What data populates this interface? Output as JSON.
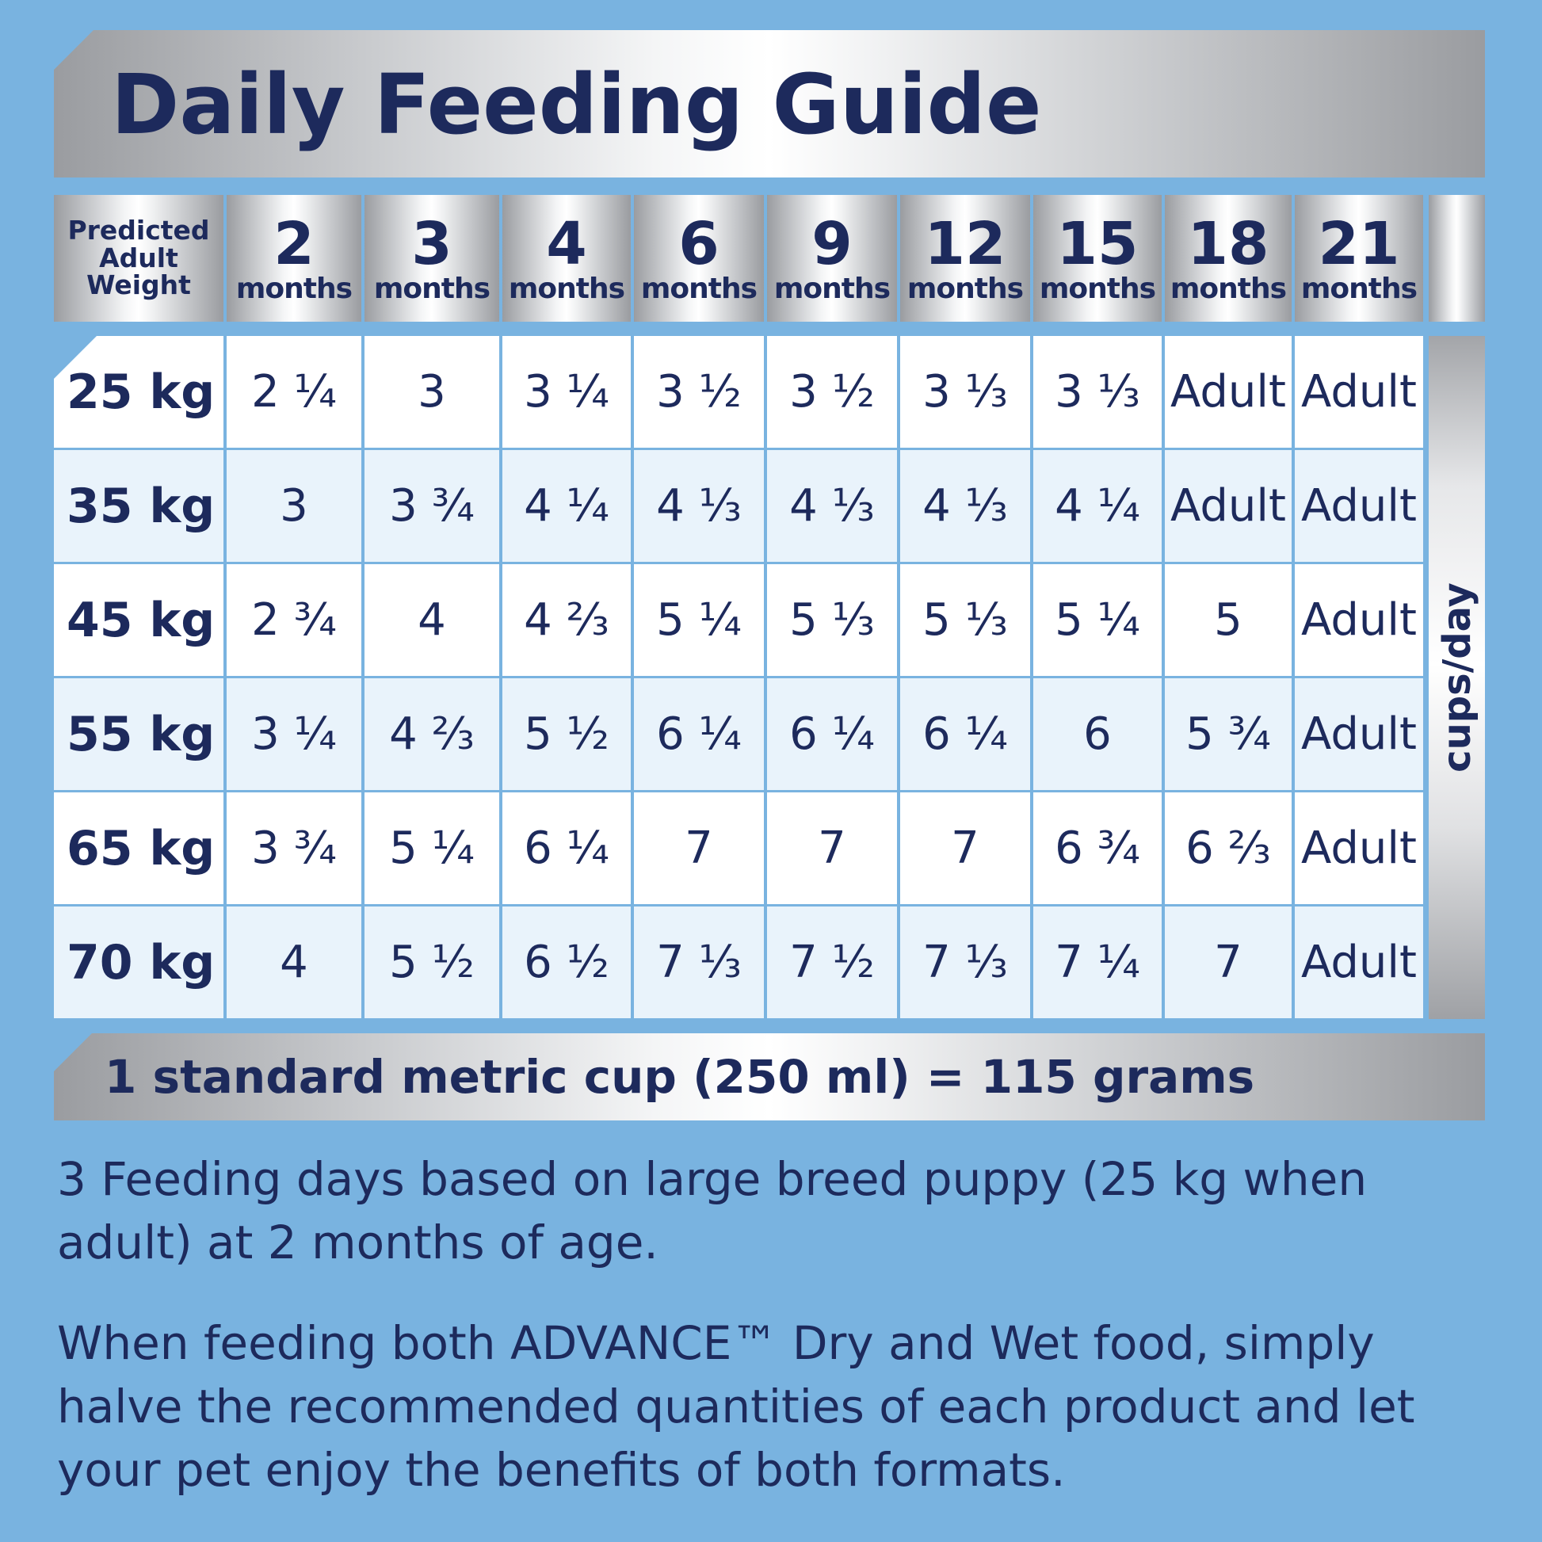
{
  "title": "Daily Feeding Guide",
  "table": {
    "weight_header": "Predicted\nAdult\nWeight",
    "columns": [
      {
        "num": "2",
        "unit": "months"
      },
      {
        "num": "3",
        "unit": "months"
      },
      {
        "num": "4",
        "unit": "months"
      },
      {
        "num": "6",
        "unit": "months"
      },
      {
        "num": "9",
        "unit": "months"
      },
      {
        "num": "12",
        "unit": "months"
      },
      {
        "num": "15",
        "unit": "months"
      },
      {
        "num": "18",
        "unit": "months"
      },
      {
        "num": "21",
        "unit": "months"
      }
    ],
    "rows": [
      {
        "weight": "25 kg",
        "values": [
          "2 ¼",
          "3",
          "3 ¼",
          "3 ½",
          "3 ½",
          "3 ⅓",
          "3 ⅓",
          "Adult",
          "Adult"
        ]
      },
      {
        "weight": "35 kg",
        "values": [
          "3",
          "3 ¾",
          "4 ¼",
          "4 ⅓",
          "4 ⅓",
          "4 ⅓",
          "4 ¼",
          "Adult",
          "Adult"
        ]
      },
      {
        "weight": "45 kg",
        "values": [
          "2 ¾",
          "4",
          "4 ⅔",
          "5 ¼",
          "5 ⅓",
          "5 ⅓",
          "5 ¼",
          "5",
          "Adult"
        ]
      },
      {
        "weight": "55 kg",
        "values": [
          "3 ¼",
          "4 ⅔",
          "5 ½",
          "6 ¼",
          "6 ¼",
          "6 ¼",
          "6",
          "5 ¾",
          "Adult"
        ]
      },
      {
        "weight": "65 kg",
        "values": [
          "3 ¾",
          "5 ¼",
          "6 ¼",
          "7",
          "7",
          "7",
          "6 ¾",
          "6 ⅔",
          "Adult"
        ]
      },
      {
        "weight": "70 kg",
        "values": [
          "4",
          "5 ½",
          "6 ½",
          "7 ⅓",
          "7 ½",
          "7 ⅓",
          "7 ¼",
          "7",
          "Adult"
        ]
      }
    ],
    "unit_label": "cups/day"
  },
  "cup_note": "1 standard metric cup (250 ml) = 115 grams",
  "paragraph1": "3 Feeding days based on large breed puppy (25 kg when adult) at 2 months of age.",
  "paragraph2": "When feeding both ADVANCE™ Dry and Wet food, simply halve the recommended quantities of each product and let your pet enjoy the benefits of both formats.",
  "colors": {
    "background": "#79b3e0",
    "navy": "#1d2a5c",
    "white_row": "#ffffff",
    "tint_row": "#e9f3fb",
    "grid_line": "#79b3e0"
  }
}
